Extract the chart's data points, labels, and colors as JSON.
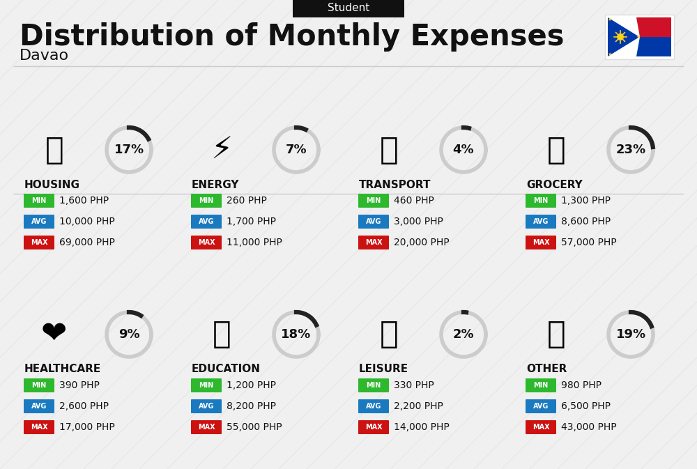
{
  "title": "Distribution of Monthly Expenses",
  "subtitle": "Student",
  "location": "Davao",
  "background_color": "#f0f0f0",
  "categories": [
    {
      "name": "HOUSING",
      "pct": 17,
      "min": "1,600 PHP",
      "avg": "10,000 PHP",
      "max": "69,000 PHP",
      "emoji": "🏢",
      "row": 0,
      "col": 0
    },
    {
      "name": "ENERGY",
      "pct": 7,
      "min": "260 PHP",
      "avg": "1,700 PHP",
      "max": "11,000 PHP",
      "emoji": "⚡",
      "row": 0,
      "col": 1
    },
    {
      "name": "TRANSPORT",
      "pct": 4,
      "min": "460 PHP",
      "avg": "3,000 PHP",
      "max": "20,000 PHP",
      "emoji": "🚌",
      "row": 0,
      "col": 2
    },
    {
      "name": "GROCERY",
      "pct": 23,
      "min": "1,300 PHP",
      "avg": "8,600 PHP",
      "max": "57,000 PHP",
      "emoji": "🛒",
      "row": 0,
      "col": 3
    },
    {
      "name": "HEALTHCARE",
      "pct": 9,
      "min": "390 PHP",
      "avg": "2,600 PHP",
      "max": "17,000 PHP",
      "emoji": "❤️",
      "row": 1,
      "col": 0
    },
    {
      "name": "EDUCATION",
      "pct": 18,
      "min": "1,200 PHP",
      "avg": "8,200 PHP",
      "max": "55,000 PHP",
      "emoji": "🎓",
      "row": 1,
      "col": 1
    },
    {
      "name": "LEISURE",
      "pct": 2,
      "min": "330 PHP",
      "avg": "2,200 PHP",
      "max": "14,000 PHP",
      "emoji": "🛍️",
      "row": 1,
      "col": 2
    },
    {
      "name": "OTHER",
      "pct": 19,
      "min": "980 PHP",
      "avg": "6,500 PHP",
      "max": "43,000 PHP",
      "emoji": "💰",
      "row": 1,
      "col": 3
    }
  ],
  "min_color": "#2db82d",
  "avg_color": "#1a7abf",
  "max_color": "#cc1111",
  "label_text_color": "#ffffff",
  "title_color": "#111111",
  "donut_dark": "#222222",
  "donut_light": "#cccccc"
}
